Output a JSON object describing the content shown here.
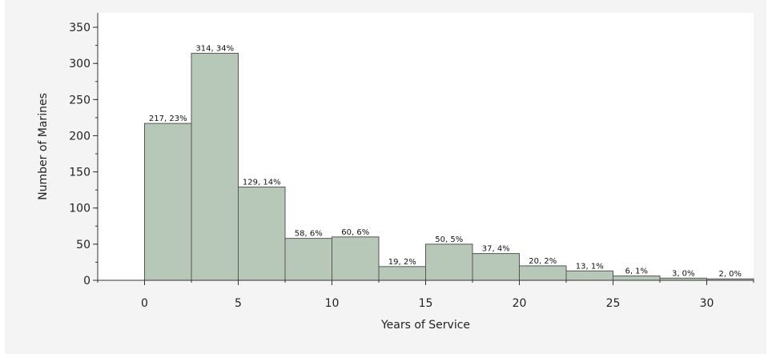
{
  "chart_data": {
    "type": "bar",
    "xlabel": "Years of Service",
    "ylabel": "Number of Marines",
    "xlim": [
      -2.5,
      32.5
    ],
    "ylim": [
      0,
      370
    ],
    "x_ticks": [
      0,
      5,
      10,
      15,
      20,
      25,
      30
    ],
    "y_ticks": [
      0,
      50,
      100,
      150,
      200,
      250,
      300,
      350
    ],
    "bin_width": 2.5,
    "bins": [
      {
        "start": 0.0,
        "end": 2.5,
        "value": 217,
        "label": "217, 23%"
      },
      {
        "start": 2.5,
        "end": 5.0,
        "value": 314,
        "label": "314, 34%"
      },
      {
        "start": 5.0,
        "end": 7.5,
        "value": 129,
        "label": "129, 14%"
      },
      {
        "start": 7.5,
        "end": 10.0,
        "value": 58,
        "label": "58, 6%"
      },
      {
        "start": 10.0,
        "end": 12.5,
        "value": 60,
        "label": "60, 6%"
      },
      {
        "start": 12.5,
        "end": 15.0,
        "value": 19,
        "label": "19, 2%"
      },
      {
        "start": 15.0,
        "end": 17.5,
        "value": 50,
        "label": "50, 5%"
      },
      {
        "start": 17.5,
        "end": 20.0,
        "value": 37,
        "label": "37, 4%"
      },
      {
        "start": 20.0,
        "end": 22.5,
        "value": 20,
        "label": "20, 2%"
      },
      {
        "start": 22.5,
        "end": 25.0,
        "value": 13,
        "label": "13, 1%"
      },
      {
        "start": 25.0,
        "end": 27.5,
        "value": 6,
        "label": "6, 1%"
      },
      {
        "start": 27.5,
        "end": 30.0,
        "value": 3,
        "label": "3, 0%"
      },
      {
        "start": 30.0,
        "end": 32.5,
        "value": 2,
        "label": "2, 0%"
      }
    ],
    "grid": false,
    "colors": {
      "bar_fill": "#b8c8b8",
      "bar_stroke": "#555555",
      "plot_bg": "#ffffff",
      "panel_bg": "#f4f4f4"
    }
  }
}
